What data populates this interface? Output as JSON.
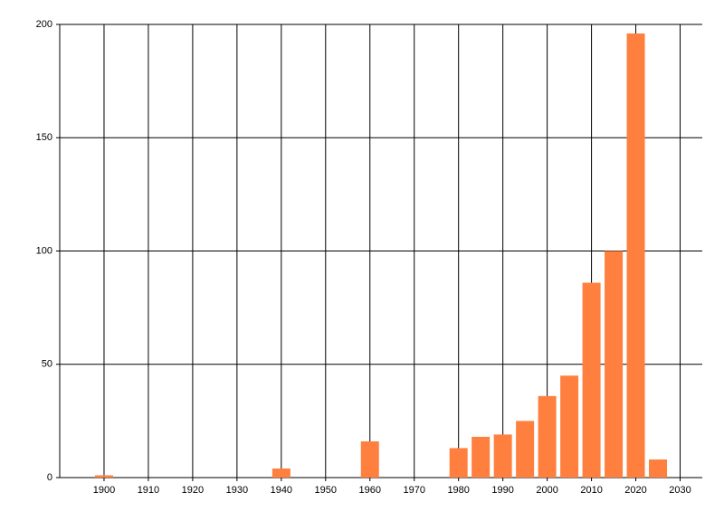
{
  "chart_data": {
    "type": "bar",
    "x": [
      1900,
      1940,
      1960,
      1980,
      1985,
      1990,
      1995,
      2000,
      2005,
      2010,
      2015,
      2020,
      2025
    ],
    "values": [
      1,
      4,
      16,
      13,
      18,
      19,
      25,
      36,
      45,
      86,
      100,
      196,
      8
    ],
    "color": "#ff7f3f",
    "xlim": [
      1890,
      2035
    ],
    "xticks": [
      1900,
      1910,
      1920,
      1930,
      1940,
      1950,
      1960,
      1970,
      1980,
      1990,
      2000,
      2010,
      2020,
      2030
    ],
    "ylim": [
      0,
      200
    ],
    "yticks": [
      0,
      50,
      100,
      150,
      200
    ],
    "grid": true
  }
}
